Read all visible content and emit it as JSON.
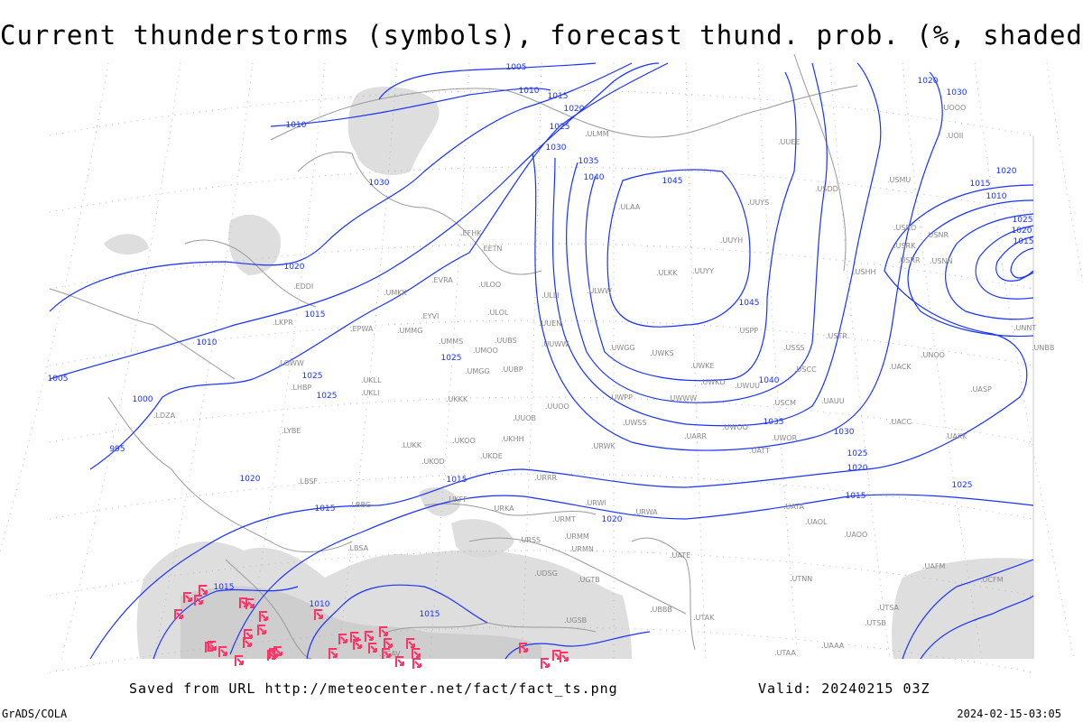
{
  "title": "Current thunderstorms (symbols), forecast thund. prob. (%, shaded)",
  "footer": {
    "saved_from": "Saved from URL http://meteocenter.net/fact/fact_ts.png",
    "valid": "Valid: 20240215 03Z",
    "software": "GrADS/COLA",
    "generated": "2024-02-15-03:05"
  },
  "colors": {
    "isobars": "#1a32ff",
    "thunderstorm_symbols": "#ff3366",
    "probability_shading": "#d8d8d8",
    "coastlines": "#9a9a9a",
    "station_labels": "#888888"
  },
  "isobar_labels": [
    "1005",
    "1010",
    "1015",
    "1020",
    "1025",
    "1030",
    "1035",
    "1040",
    "1045",
    "1045",
    "1040",
    "1035",
    "1030",
    "1025",
    "1020",
    "1015",
    "1010",
    "1015",
    "1020",
    "1025",
    "1025",
    "1025",
    "1025",
    "1020",
    "1020",
    "1015",
    "1015",
    "1010",
    "1010",
    "1015",
    "1015",
    "1030",
    "1020",
    "1015",
    "1010",
    "1005",
    "1000",
    "995",
    "1020",
    "1025",
    "1020",
    "1015",
    "1030"
  ],
  "stations": [
    "ULOO",
    "ULMM",
    "UUEE",
    "ULAA",
    "ULWW",
    "ULLI",
    "UUYS",
    "UUYH",
    "ULKK",
    "UUYY",
    "UUEN",
    "UUWW",
    "USPP",
    "UWGG",
    "UWKS",
    "UWKE",
    "UWKD",
    "UWUU",
    "UWPP",
    "UWWW",
    "USCM",
    "UWOO",
    "UWSS",
    "UARR",
    "UWOR",
    "URWK",
    "USSS",
    "USCC",
    "UAUU",
    "USTR",
    "USHH",
    "USRR",
    "USRK",
    "USRO",
    "USNR",
    "USNN",
    "USMU",
    "USDD",
    "UOOO",
    "UOII",
    "UNNT",
    "UNBB",
    "UNOO",
    "UACK",
    "UASP",
    "UACC",
    "UAKK",
    "UATT",
    "EVRA",
    "ULOL",
    "UMKK",
    "EYVI",
    "UMMG",
    "UMGG",
    "UUBS",
    "UUBP",
    "UMMS",
    "UMOO",
    "UKLL",
    "UKLI",
    "UKKK",
    "UUOB",
    "UKHH",
    "UKOO",
    "UKDE",
    "LUKK",
    "UKOD",
    "URRR",
    "UKFF",
    "URKA",
    "URMT",
    "URSS",
    "URMM",
    "URMN",
    "UGTB",
    "UDSG",
    "UBBB",
    "UTAK",
    "UTAA",
    "UTSA",
    "UTSB",
    "UATE",
    "UAOL",
    "UATA",
    "UAOO",
    "URWA",
    "URWI",
    "UGSB",
    "UUOO",
    "LBSF",
    "LBBG",
    "LYBE",
    "LHBP",
    "LOWW",
    "LKPR",
    "EPWA",
    "EDDI",
    "EFHK",
    "EETN",
    "LDZA",
    "LBSA",
    "LGAV",
    "UTNN",
    "UCFM",
    "UAFM",
    "UAAA"
  ]
}
